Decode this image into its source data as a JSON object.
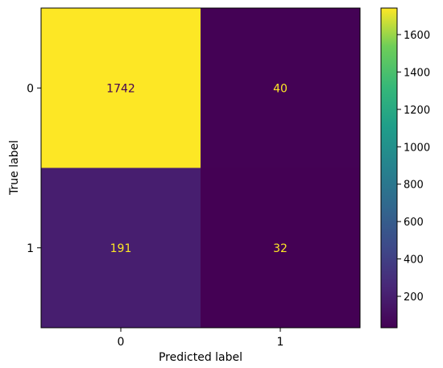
{
  "chart_data": {
    "type": "heatmap",
    "title": "",
    "xlabel": "Predicted label",
    "ylabel": "True label",
    "x_categories": [
      "0",
      "1"
    ],
    "y_categories": [
      "0",
      "1"
    ],
    "matrix": [
      [
        1742,
        40
      ],
      [
        191,
        32
      ]
    ],
    "colormap": "viridis",
    "colorbar": {
      "ticks": [
        "200",
        "400",
        "600",
        "800",
        "1000",
        "1200",
        "1400",
        "1600"
      ],
      "range": [
        32,
        1742
      ]
    },
    "cell_text_colors": {
      "on_dark": "#fde725",
      "on_light": "#440154"
    }
  }
}
